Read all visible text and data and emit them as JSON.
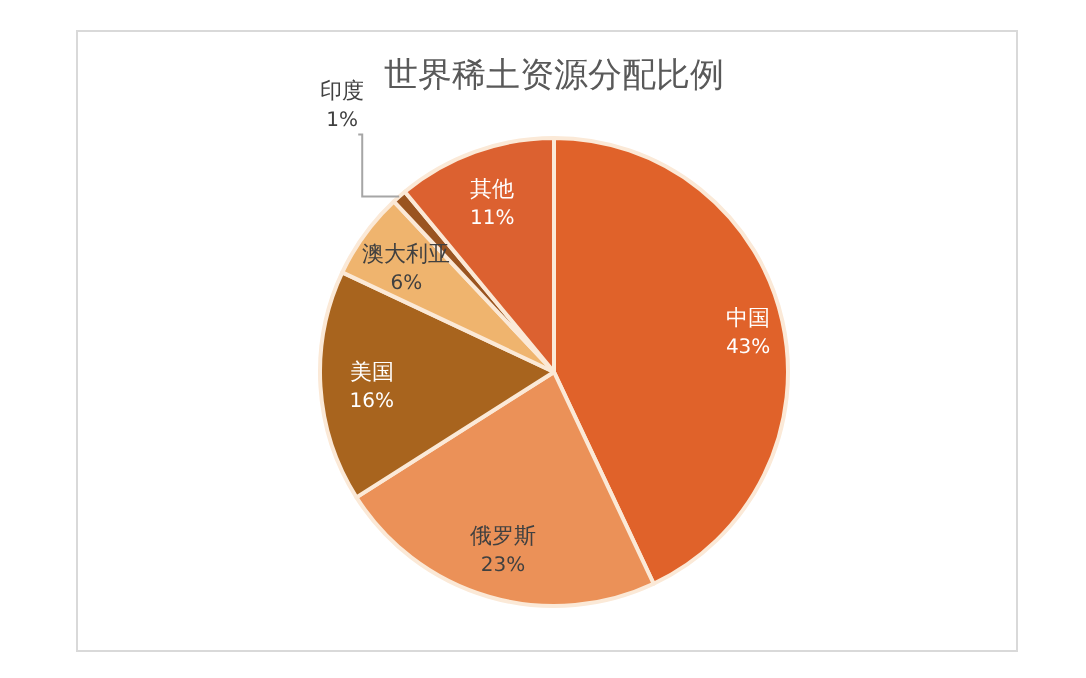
{
  "chart_data": {
    "type": "pie",
    "title": "世界稀土资源分配比例",
    "categories": [
      "中国",
      "俄罗斯",
      "美国",
      "澳大利亚",
      "印度",
      "其他"
    ],
    "values": [
      43,
      23,
      16,
      6,
      1,
      11
    ],
    "colors": [
      "#e0622a",
      "#eb9158",
      "#a8641e",
      "#efb46e",
      "#9a5420",
      "#dc6130"
    ],
    "value_labels": [
      "43%",
      "23%",
      "16%",
      "6%",
      "1%",
      "11%"
    ],
    "legend": false
  }
}
